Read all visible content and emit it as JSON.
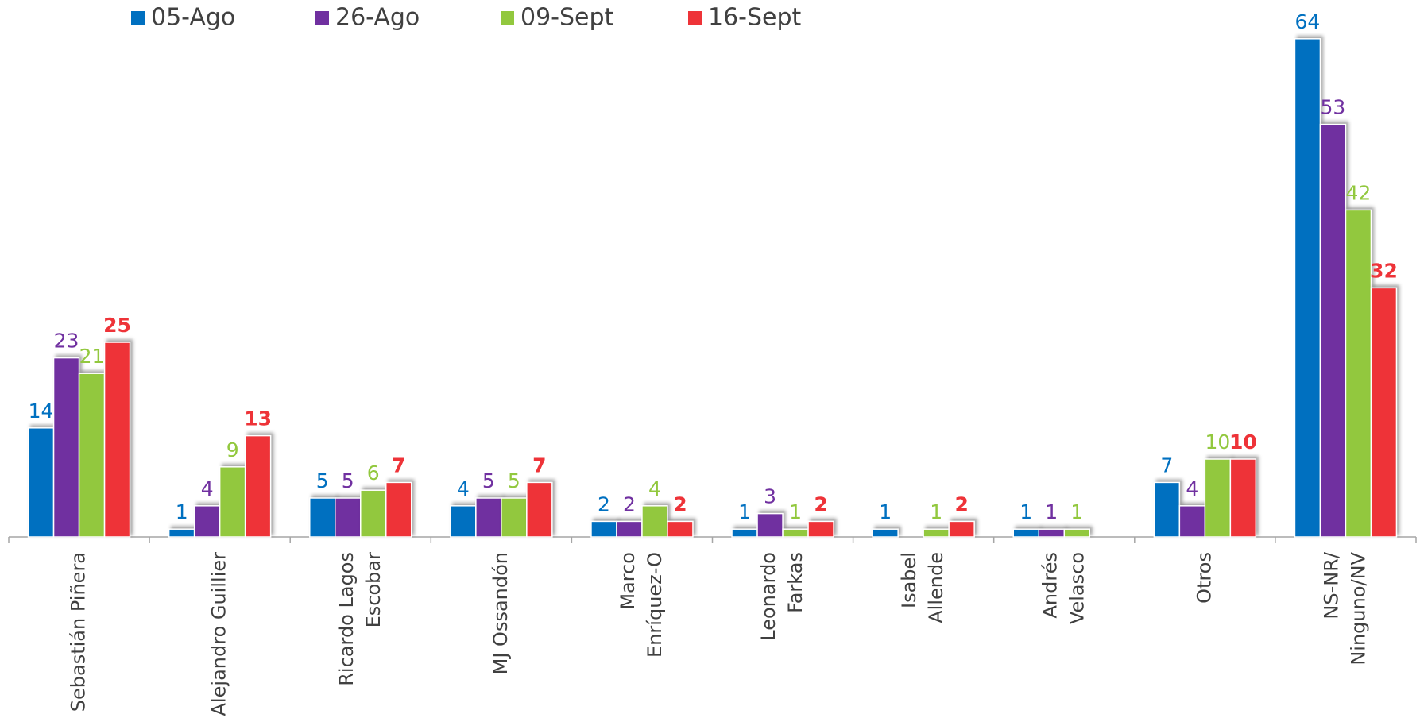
{
  "chart_data": {
    "type": "bar",
    "categories": [
      [
        "Sebastián Piñera"
      ],
      [
        "Alejandro  Guillier"
      ],
      [
        "Ricardo Lagos",
        "Escobar"
      ],
      [
        "MJ  Ossandón"
      ],
      [
        "Marco",
        "Enríquez-O"
      ],
      [
        "Leonardo",
        "Farkas"
      ],
      [
        "Isabel",
        "Allende"
      ],
      [
        "Andrés",
        "Velasco"
      ],
      [
        "Otros"
      ],
      [
        "NS-NR/",
        "Ninguno/NV"
      ]
    ],
    "series": [
      {
        "name": "05-Ago",
        "color": "#0070c0",
        "values": [
          14,
          1,
          5,
          4,
          2,
          1,
          1,
          1,
          7,
          64
        ]
      },
      {
        "name": "26-Ago",
        "color": "#7030a0",
        "values": [
          23,
          4,
          5,
          5,
          2,
          3,
          null,
          1,
          4,
          53
        ]
      },
      {
        "name": "09-Sept",
        "color": "#92c83e",
        "values": [
          21,
          9,
          6,
          5,
          4,
          1,
          1,
          1,
          10,
          42
        ]
      },
      {
        "name": "16-Sept",
        "color": "#ee3338",
        "values": [
          25,
          13,
          7,
          7,
          2,
          2,
          2,
          null,
          10,
          32
        ]
      }
    ],
    "legend": "top"
  }
}
